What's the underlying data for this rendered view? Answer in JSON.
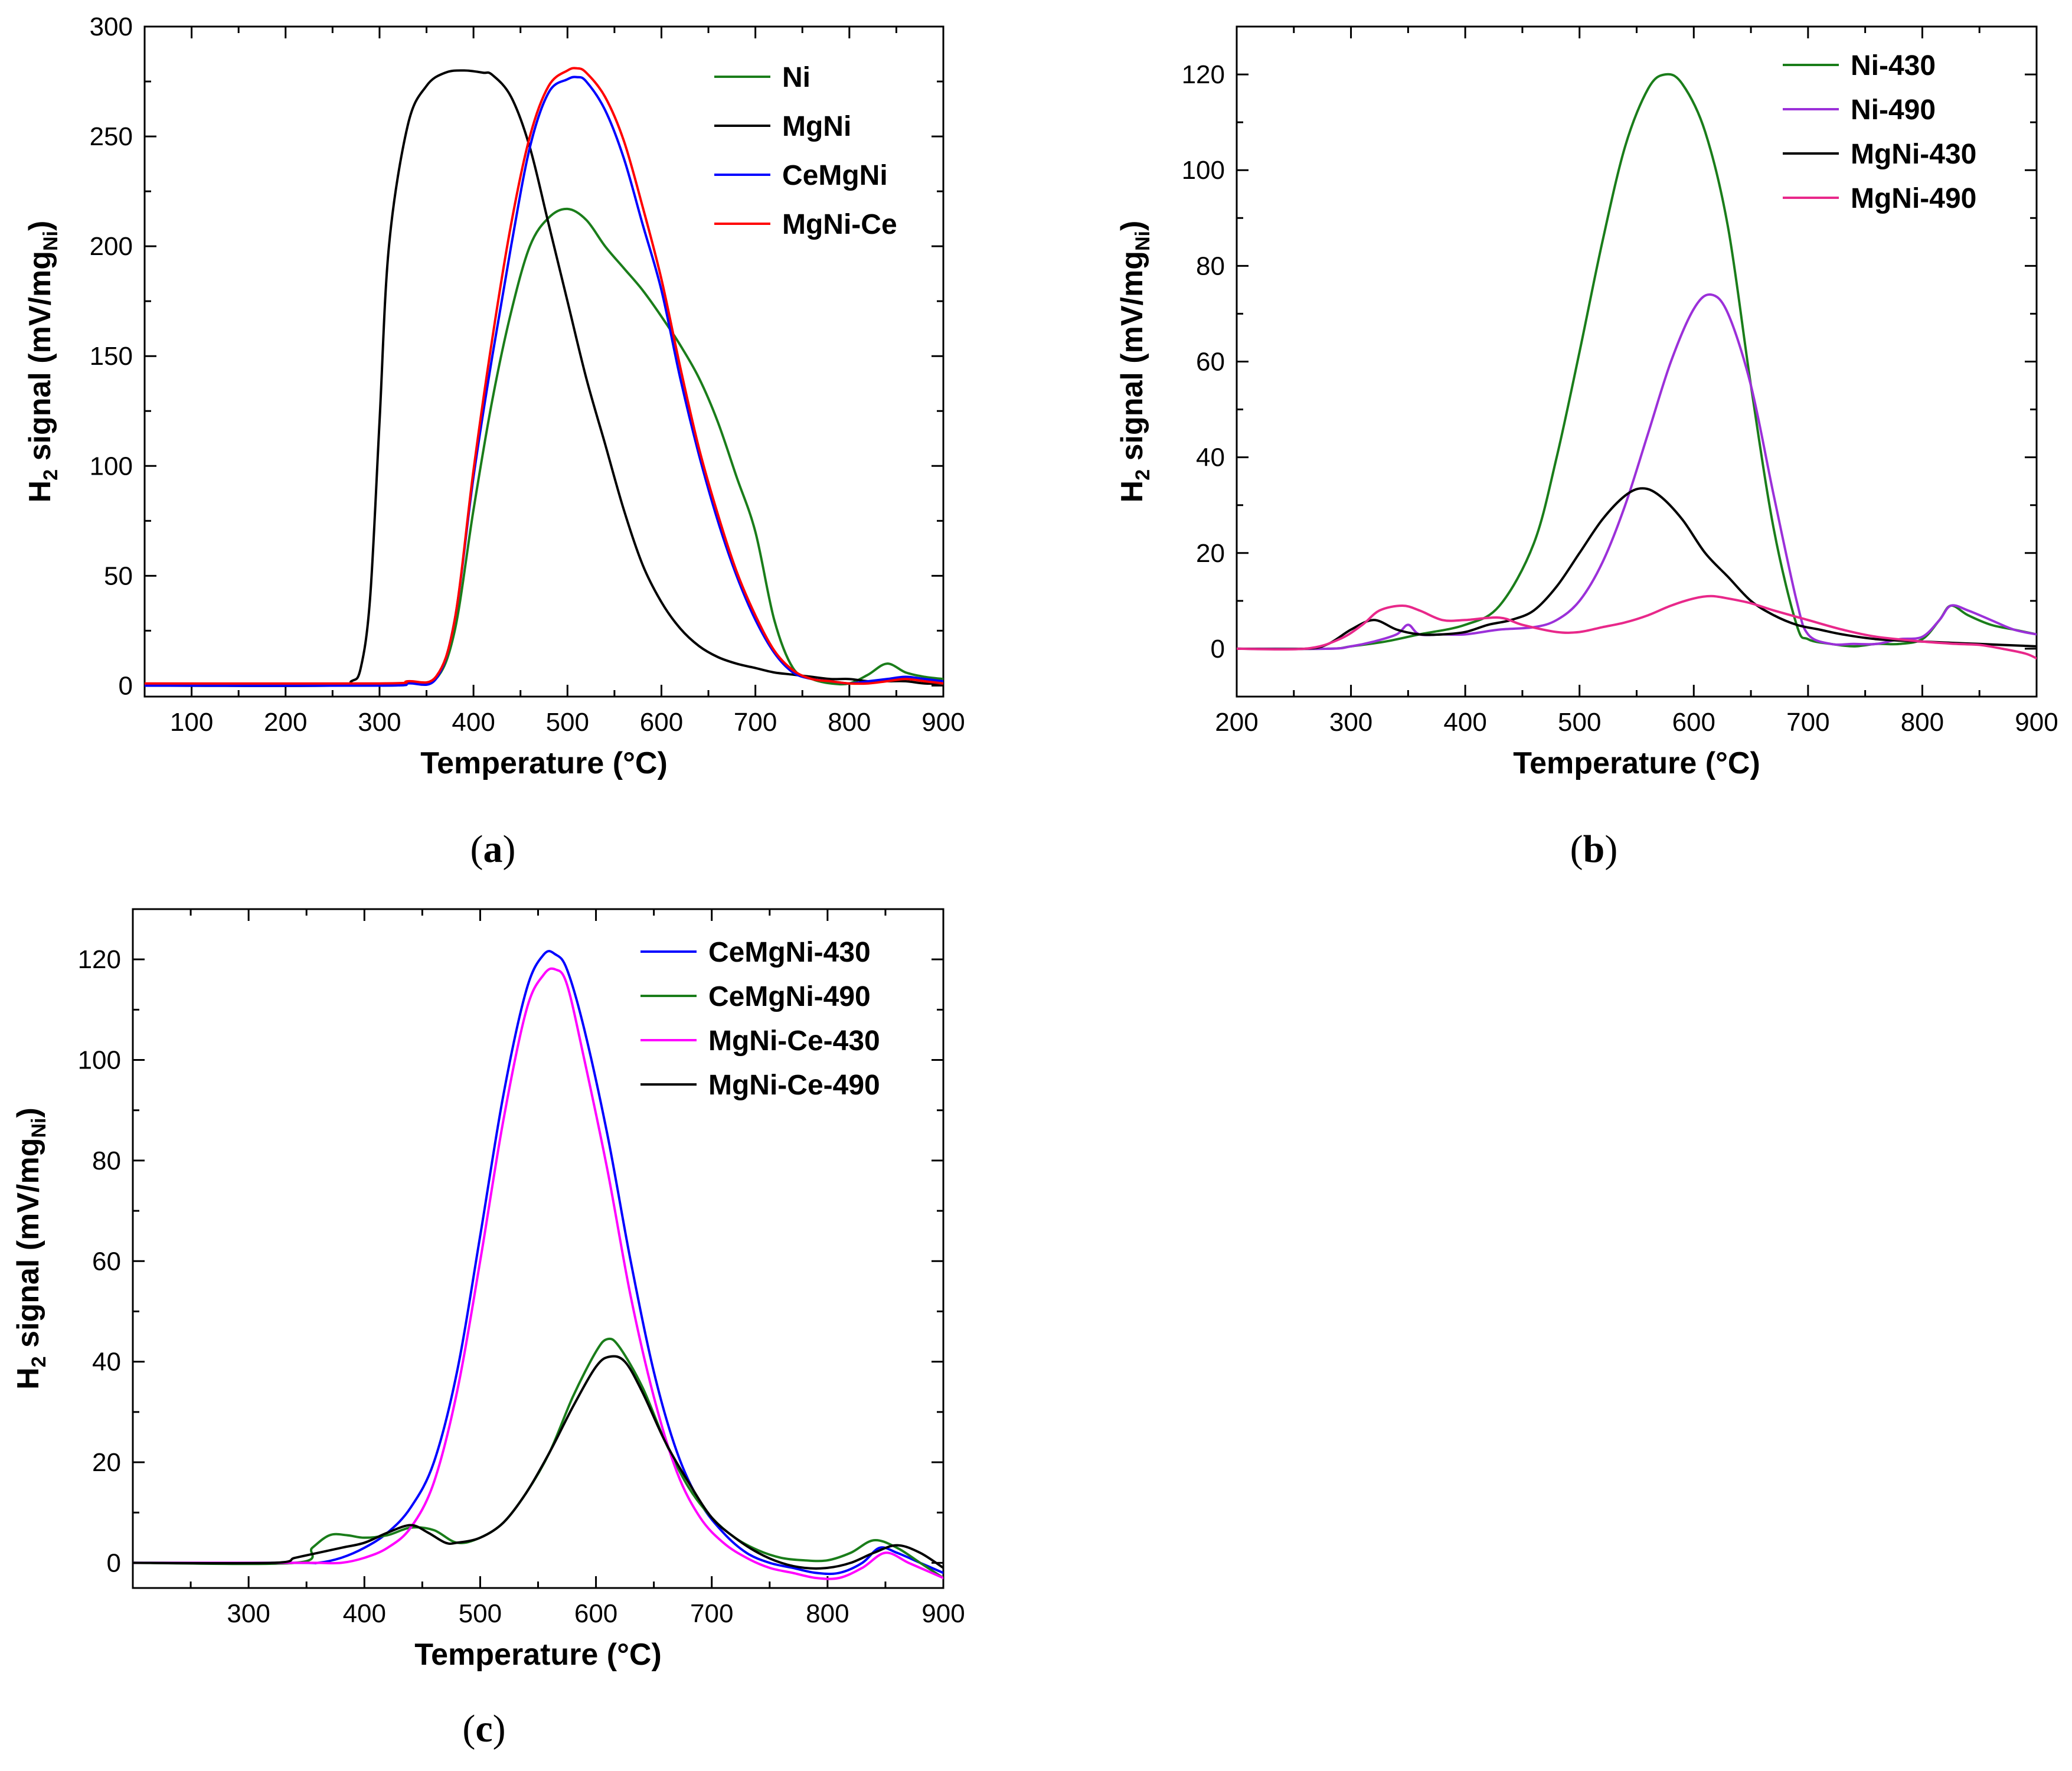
{
  "figure": {
    "panels": [
      "a",
      "b",
      "c"
    ]
  },
  "chart_data": [
    {
      "type": "line",
      "panel": "a",
      "panel_label": "(a)",
      "panel_label_letter": "a",
      "xlabel": "Temperature (°C)",
      "ylabel": "H2 signal (mV/mgNi)",
      "ylabel_main": "H",
      "ylabel_sub": "2",
      "ylabel_mid": " signal (mV/mg",
      "ylabel_sub2": "Ni",
      "ylabel_end": ")",
      "xlim": [
        50,
        900
      ],
      "ylim": [
        -5,
        300
      ],
      "xticks": [
        100,
        200,
        300,
        400,
        500,
        600,
        700,
        800,
        900
      ],
      "yticks": [
        0,
        50,
        100,
        150,
        200,
        250,
        300
      ],
      "legend_position": "top-right",
      "series": [
        {
          "name": "Ni",
          "color": "#1a7d1a",
          "x": [
            50,
            300,
            330,
            360,
            380,
            400,
            420,
            440,
            460,
            480,
            500,
            520,
            540,
            560,
            580,
            600,
            620,
            640,
            660,
            680,
            700,
            720,
            740,
            760,
            780,
            800,
            820,
            840,
            860,
            880,
            900
          ],
          "y": [
            0,
            0,
            1,
            3,
            25,
            80,
            130,
            170,
            200,
            213,
            217,
            212,
            200,
            190,
            180,
            168,
            155,
            140,
            120,
            95,
            70,
            30,
            8,
            3,
            1,
            1,
            5,
            10,
            6,
            4,
            3
          ]
        },
        {
          "name": "MgNi",
          "color": "#000000",
          "x": [
            50,
            250,
            270,
            280,
            290,
            300,
            310,
            330,
            350,
            370,
            390,
            410,
            420,
            440,
            460,
            480,
            500,
            520,
            540,
            560,
            580,
            600,
            620,
            640,
            660,
            680,
            700,
            720,
            740,
            760,
            780,
            800,
            820,
            840,
            860,
            880,
            900
          ],
          "y": [
            0,
            0,
            2,
            8,
            40,
            120,
            200,
            255,
            273,
            279,
            280,
            279,
            278,
            268,
            245,
            210,
            175,
            140,
            110,
            80,
            55,
            38,
            26,
            18,
            13,
            10,
            8,
            6,
            5,
            4,
            3,
            3,
            2,
            2,
            2,
            1,
            1
          ]
        },
        {
          "name": "CeMgNi",
          "color": "#0000ff",
          "x": [
            50,
            300,
            330,
            360,
            380,
            400,
            420,
            440,
            460,
            480,
            500,
            510,
            520,
            540,
            560,
            580,
            600,
            620,
            640,
            660,
            680,
            700,
            720,
            740,
            760,
            780,
            800,
            820,
            840,
            860,
            880,
            900
          ],
          "y": [
            0,
            0,
            1,
            3,
            30,
            95,
            150,
            200,
            245,
            270,
            276,
            277,
            275,
            262,
            240,
            210,
            180,
            140,
            105,
            75,
            50,
            30,
            15,
            6,
            3,
            2,
            1,
            2,
            3,
            4,
            3,
            2
          ]
        },
        {
          "name": "MgNi-Ce",
          "color": "#ff0000",
          "x": [
            50,
            300,
            330,
            360,
            380,
            400,
            420,
            440,
            460,
            480,
            500,
            510,
            520,
            540,
            560,
            580,
            600,
            620,
            640,
            660,
            680,
            700,
            720,
            740,
            760,
            780,
            800,
            820,
            840,
            860,
            880,
            900
          ],
          "y": [
            1,
            1,
            2,
            4,
            30,
            98,
            158,
            210,
            250,
            273,
            280,
            281,
            279,
            268,
            248,
            218,
            185,
            145,
            108,
            78,
            52,
            32,
            16,
            7,
            3,
            2,
            1,
            1,
            2,
            3,
            2,
            1
          ]
        }
      ]
    },
    {
      "type": "line",
      "panel": "b",
      "panel_label": "(b)",
      "panel_label_letter": "b",
      "xlabel": "Temperature (°C)",
      "ylabel": "H2 signal (mV/mgNi)",
      "ylabel_main": "H",
      "ylabel_sub": "2",
      "ylabel_mid": " signal (mV/mg",
      "ylabel_sub2": "Ni",
      "ylabel_end": ")",
      "xlim": [
        200,
        900
      ],
      "ylim": [
        -10,
        130
      ],
      "xticks": [
        200,
        300,
        400,
        500,
        600,
        700,
        800,
        900
      ],
      "yticks": [
        0,
        20,
        40,
        60,
        80,
        100,
        120
      ],
      "legend_position": "top-right",
      "series": [
        {
          "name": "Ni-430",
          "color": "#1a7d1a",
          "x": [
            200,
            280,
            300,
            330,
            360,
            400,
            430,
            460,
            480,
            500,
            520,
            540,
            560,
            575,
            590,
            610,
            630,
            650,
            670,
            690,
            700,
            720,
            740,
            760,
            780,
            800,
            815,
            825,
            840,
            860,
            880,
            900
          ],
          "y": [
            0,
            0,
            0.5,
            1.5,
            3,
            5,
            9,
            22,
            40,
            62,
            85,
            105,
            117,
            120,
            118,
            108,
            88,
            55,
            25,
            5,
            2,
            1,
            0.5,
            1,
            1,
            2,
            6,
            9,
            7,
            5,
            4,
            3
          ]
        },
        {
          "name": "Ni-490",
          "color": "#9b30d9",
          "x": [
            200,
            280,
            300,
            320,
            340,
            350,
            360,
            380,
            400,
            430,
            460,
            480,
            500,
            520,
            540,
            560,
            580,
            600,
            615,
            630,
            650,
            670,
            690,
            700,
            720,
            740,
            760,
            780,
            800,
            815,
            825,
            840,
            860,
            880,
            900
          ],
          "y": [
            0,
            0,
            0.5,
            1.5,
            3,
            5,
            3,
            3,
            3,
            4,
            4.5,
            6,
            10,
            18,
            30,
            45,
            60,
            71,
            74,
            70,
            55,
            32,
            10,
            3,
            1,
            1,
            1,
            2,
            2.5,
            6,
            9,
            8,
            6,
            4,
            3
          ]
        },
        {
          "name": "MgNi-430",
          "color": "#000000",
          "x": [
            200,
            260,
            280,
            300,
            320,
            340,
            360,
            380,
            400,
            420,
            440,
            460,
            480,
            500,
            520,
            540,
            555,
            570,
            590,
            610,
            630,
            650,
            670,
            690,
            710,
            730,
            760,
            800,
            850,
            900
          ],
          "y": [
            0,
            0,
            1,
            4,
            6,
            4,
            3,
            3,
            3.5,
            5,
            6,
            8,
            13,
            20,
            27,
            32,
            33.5,
            32,
            27,
            20,
            15,
            10,
            7,
            5,
            4,
            3,
            2,
            1.5,
            1,
            0.5
          ]
        },
        {
          "name": "MgNi-490",
          "color": "#e8288a",
          "x": [
            200,
            260,
            290,
            310,
            325,
            345,
            360,
            380,
            400,
            430,
            450,
            480,
            500,
            520,
            540,
            560,
            580,
            600,
            615,
            630,
            650,
            670,
            700,
            730,
            760,
            800,
            830,
            850,
            870,
            890,
            900
          ],
          "y": [
            0,
            0,
            2,
            5,
            8,
            9,
            8,
            6,
            6,
            6.5,
            5,
            3.5,
            3.5,
            4.5,
            5.5,
            7,
            9,
            10.5,
            11,
            10.5,
            9.5,
            8,
            6,
            4,
            2.5,
            1.5,
            1,
            0.8,
            0,
            -1,
            -2
          ]
        }
      ]
    },
    {
      "type": "line",
      "panel": "c",
      "panel_label": "(c)",
      "panel_label_letter": "c",
      "xlabel": "Temperature (°C)",
      "ylabel": "H2 signal (mV/mgNi)",
      "ylabel_main": "H",
      "ylabel_sub": "2",
      "ylabel_mid": " signal (mV/mg",
      "ylabel_sub2": "Ni",
      "ylabel_end": ")",
      "xlim": [
        200,
        900
      ],
      "ylim": [
        -5,
        130
      ],
      "xticks": [
        300,
        400,
        500,
        600,
        700,
        800,
        900
      ],
      "yticks": [
        0,
        20,
        40,
        60,
        80,
        100,
        120
      ],
      "legend_position": "top-right",
      "series": [
        {
          "name": "CeMgNi-430",
          "color": "#0000ff",
          "x": [
            200,
            340,
            360,
            380,
            400,
            420,
            440,
            460,
            480,
            500,
            520,
            540,
            555,
            565,
            575,
            590,
            610,
            630,
            650,
            670,
            690,
            710,
            730,
            750,
            770,
            790,
            810,
            830,
            845,
            860,
            880,
            900
          ],
          "y": [
            0,
            0,
            0,
            1,
            3,
            6,
            11,
            20,
            38,
            65,
            93,
            114,
            121,
            121,
            118,
            106,
            85,
            60,
            38,
            22,
            12,
            6,
            2,
            0,
            -1,
            -2,
            -2,
            0,
            3,
            2,
            0,
            -2
          ]
        },
        {
          "name": "CeMgNi-490",
          "color": "#1a7d1a",
          "x": [
            200,
            340,
            355,
            370,
            385,
            400,
            420,
            440,
            460,
            480,
            500,
            520,
            540,
            560,
            580,
            600,
            610,
            620,
            640,
            660,
            680,
            700,
            720,
            740,
            760,
            780,
            800,
            820,
            840,
            860,
            880,
            900
          ],
          "y": [
            0,
            0,
            3,
            5.5,
            5.5,
            5,
            5.5,
            7,
            6.5,
            4,
            5,
            8,
            14,
            22,
            33,
            42,
            44.5,
            43,
            35,
            24,
            15,
            9,
            5,
            2.5,
            1,
            0.5,
            0.5,
            2,
            4.5,
            3,
            0,
            -3
          ]
        },
        {
          "name": "MgNi-Ce-430",
          "color": "#ff00ff",
          "x": [
            200,
            340,
            360,
            380,
            400,
            420,
            440,
            460,
            480,
            500,
            520,
            540,
            555,
            565,
            575,
            590,
            610,
            630,
            650,
            670,
            690,
            710,
            730,
            750,
            770,
            790,
            810,
            830,
            850,
            870,
            890,
            900
          ],
          "y": [
            0,
            0,
            0,
            0,
            1,
            3,
            7,
            16,
            34,
            60,
            88,
            110,
            117,
            118,
            115,
            100,
            78,
            53,
            33,
            18,
            9,
            4,
            1,
            -1,
            -2,
            -3,
            -3,
            -1,
            2,
            0,
            -2,
            -3
          ]
        },
        {
          "name": "MgNi-Ce-490",
          "color": "#000000",
          "x": [
            200,
            320,
            340,
            360,
            380,
            400,
            420,
            440,
            455,
            470,
            480,
            500,
            520,
            540,
            560,
            580,
            600,
            612,
            625,
            640,
            660,
            680,
            700,
            720,
            740,
            760,
            780,
            800,
            820,
            840,
            860,
            880,
            900
          ],
          "y": [
            0,
            0,
            1,
            2,
            3,
            4,
            6,
            7.5,
            6,
            4,
            4,
            5,
            8,
            14,
            22,
            31,
            39,
            41,
            40,
            34,
            24,
            16,
            9,
            5,
            2,
            0,
            -1,
            -1,
            0,
            2,
            3.5,
            2,
            -1
          ]
        }
      ]
    }
  ]
}
